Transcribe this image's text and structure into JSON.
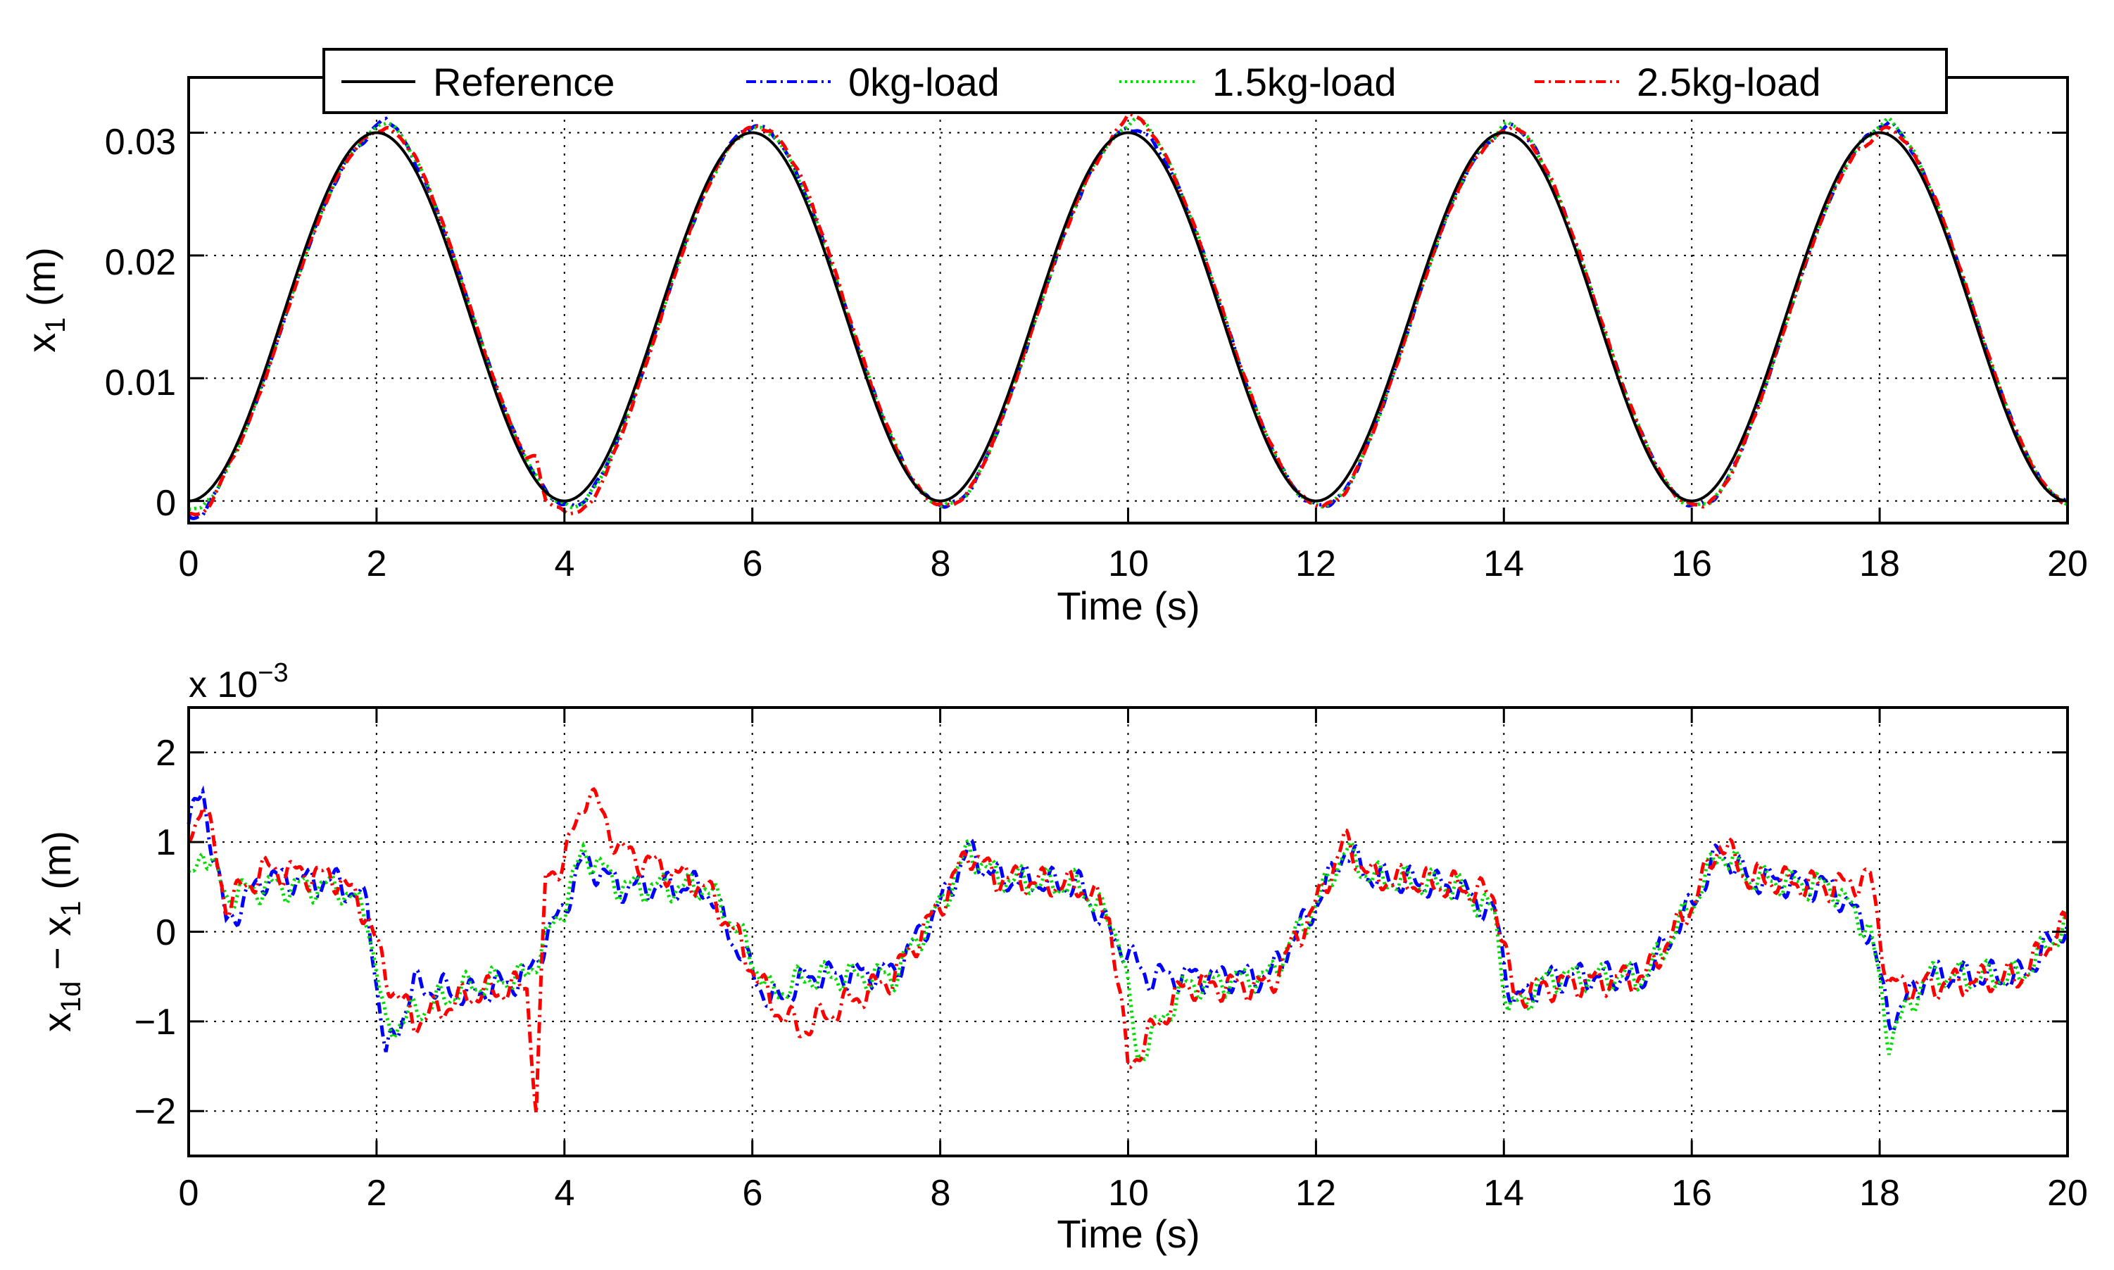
{
  "chart_data": [
    {
      "type": "line",
      "xlabel": "Time (s)",
      "ylabel_main": "x",
      "ylabel_sub": "1",
      "ylabel_unit": " (m)",
      "xlim": [
        0,
        20
      ],
      "ylim": [
        -0.0018,
        0.0345
      ],
      "xticks": [
        0,
        2,
        4,
        6,
        8,
        10,
        12,
        14,
        16,
        18,
        20
      ],
      "xtick_labels": [
        "0",
        "2",
        "4",
        "6",
        "8",
        "10",
        "12",
        "14",
        "16",
        "18",
        "20"
      ],
      "yticks": [
        0,
        0.01,
        0.02,
        0.03
      ],
      "ytick_labels": [
        "0",
        "0.01",
        "0.02",
        "0.03"
      ],
      "grid": true,
      "legend_position": "top-center",
      "series": [
        {
          "name": "Reference",
          "color": "#000000",
          "style": "solid",
          "formula": "0.015*(1-cos(pi*t/2))",
          "sample_t": [
            0,
            1,
            2,
            3,
            4,
            5,
            6,
            7,
            8,
            9,
            10,
            11,
            12,
            13,
            14,
            15,
            16,
            17,
            18,
            19,
            20
          ],
          "sample_v": [
            0,
            0.015,
            0.03,
            0.015,
            0,
            0.015,
            0.03,
            0.015,
            0,
            0.015,
            0.03,
            0.015,
            0,
            0.015,
            0.03,
            0.015,
            0,
            0.015,
            0.03,
            0.015,
            0
          ]
        },
        {
          "name": "0kg-load",
          "color": "#0000ff",
          "style": "dashdot",
          "error_t": [
            0,
            0.15,
            0.4,
            0.8,
            1.6,
            1.9,
            2.1,
            2.4,
            3.0,
            3.6,
            4.0,
            4.2,
            4.6,
            5.5,
            5.8,
            6.2,
            6.6,
            7.5,
            8.0,
            8.3,
            8.6,
            9.5,
            9.8,
            10.2,
            10.6,
            11.5,
            12.0,
            12.3,
            12.6,
            13.5,
            13.9,
            14.1,
            14.5,
            15.5,
            16.0,
            16.3,
            16.6,
            17.5,
            17.9,
            18.1,
            18.5,
            19.5,
            20.0
          ],
          "error_v": [
            0.0012,
            0.00155,
            0.0001,
            0.0006,
            0.00055,
            0.0003,
            -0.0014,
            -0.0006,
            -0.0007,
            -0.0005,
            0.0003,
            0.0008,
            0.0005,
            0.0005,
            -0.0001,
            -0.0008,
            -0.0005,
            -0.00045,
            0.0003,
            0.0009,
            0.0006,
            0.0005,
            0.0,
            -0.0005,
            -0.0005,
            -0.0005,
            0.0003,
            0.0009,
            0.0006,
            0.0005,
            0.0002,
            -0.0008,
            -0.0005,
            -0.0005,
            0.0003,
            0.0009,
            0.0006,
            0.0005,
            0.0,
            -0.001,
            -0.0005,
            -0.0005,
            0.0001
          ]
        },
        {
          "name": "1.5kg-load",
          "color": "#00dd00",
          "style": "dotted",
          "error_t": [
            0,
            0.15,
            0.4,
            0.8,
            1.6,
            1.9,
            2.1,
            2.4,
            3.0,
            3.6,
            4.0,
            4.2,
            4.6,
            5.5,
            5.8,
            6.2,
            6.6,
            7.5,
            8.0,
            8.3,
            8.6,
            9.5,
            9.9,
            10.1,
            10.6,
            11.5,
            12.0,
            12.3,
            12.6,
            13.5,
            13.9,
            14.05,
            14.5,
            15.5,
            16.0,
            16.3,
            16.6,
            17.5,
            17.9,
            18.1,
            18.5,
            19.5,
            20.0
          ],
          "error_v": [
            0.0005,
            0.00095,
            0.0004,
            0.0005,
            0.0005,
            0.0002,
            -0.0011,
            -0.0009,
            -0.0006,
            -0.0005,
            0.0003,
            0.0009,
            0.0005,
            0.0005,
            0.0001,
            -0.0007,
            -0.0005,
            -0.0005,
            0.0003,
            0.0009,
            0.0006,
            0.0005,
            0.0,
            -0.0014,
            -0.0006,
            -0.0005,
            0.0003,
            0.0009,
            0.0006,
            0.0005,
            0.0002,
            -0.0009,
            -0.0005,
            -0.0005,
            0.0003,
            0.0009,
            0.0006,
            0.0005,
            0.0,
            -0.0012,
            -0.0005,
            -0.0005,
            0.0001
          ]
        },
        {
          "name": "2.5kg-load",
          "color": "#ff0000",
          "style": "dashdot",
          "error_t": [
            0,
            0.15,
            0.4,
            0.8,
            1.6,
            1.9,
            2.1,
            2.4,
            3.0,
            3.6,
            3.7,
            3.8,
            4.0,
            4.25,
            4.6,
            5.5,
            5.8,
            6.2,
            6.5,
            7.5,
            8.0,
            8.3,
            8.6,
            9.5,
            9.8,
            10.0,
            10.6,
            11.5,
            12.0,
            12.3,
            12.6,
            13.5,
            13.9,
            14.1,
            14.5,
            15.5,
            16.0,
            16.3,
            16.6,
            17.5,
            17.9,
            18.1,
            18.5,
            19.5,
            20.0
          ],
          "error_v": [
            0.001,
            0.0015,
            0.0003,
            0.0007,
            0.0006,
            0.0002,
            -0.0005,
            -0.001,
            -0.0007,
            -0.0006,
            -0.002,
            0.0006,
            0.0008,
            0.0016,
            0.0009,
            0.0005,
            0.0,
            -0.0008,
            -0.0011,
            -0.0005,
            0.0003,
            0.0009,
            0.0006,
            0.0005,
            0.0002,
            -0.0015,
            -0.0006,
            -0.0006,
            0.0003,
            0.001,
            0.0006,
            0.0005,
            0.0004,
            -0.0007,
            -0.0006,
            -0.0005,
            0.0003,
            0.001,
            0.0006,
            0.0005,
            0.0006,
            -0.0006,
            -0.0006,
            -0.0005,
            0.0001
          ]
        }
      ]
    },
    {
      "type": "line",
      "xlabel": "Time (s)",
      "ylabel_main": "x",
      "ylabel_sub1": "1d",
      "ylabel_mid": " − x",
      "ylabel_sub2": "1",
      "ylabel_unit": " (m)",
      "multiplier_base": "x 10",
      "multiplier_exp": "−3",
      "xlim": [
        0,
        20
      ],
      "ylim": [
        -2.5,
        2.5
      ],
      "scale": 0.001,
      "xticks": [
        0,
        2,
        4,
        6,
        8,
        10,
        12,
        14,
        16,
        18,
        20
      ],
      "xtick_labels": [
        "0",
        "2",
        "4",
        "6",
        "8",
        "10",
        "12",
        "14",
        "16",
        "18",
        "20"
      ],
      "yticks": [
        -2,
        -1,
        0,
        1,
        2
      ],
      "ytick_labels": [
        "−2",
        "−1",
        "0",
        "1",
        "2"
      ],
      "grid": true,
      "series_ref": [
        "0kg-load",
        "1.5kg-load",
        "2.5kg-load"
      ]
    }
  ]
}
